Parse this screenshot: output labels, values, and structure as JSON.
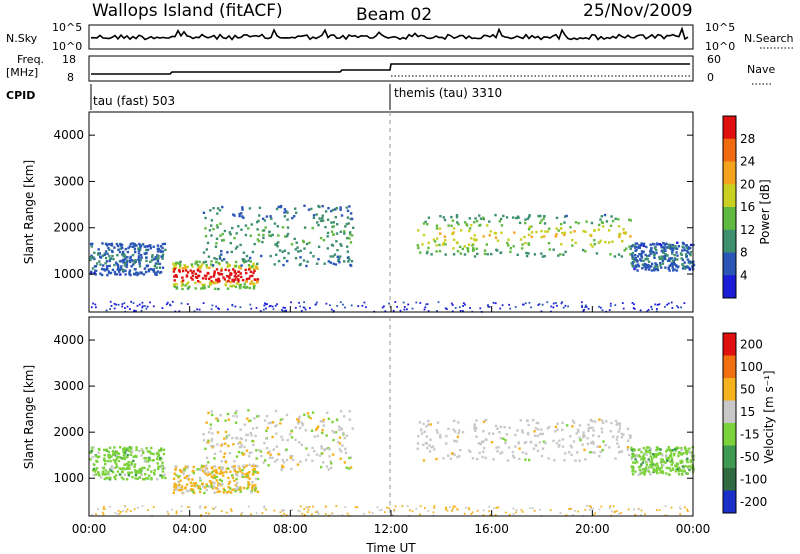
{
  "header": {
    "station": "Wallops Island (fitACF)",
    "beam": "Beam 02",
    "date": "25/Nov/2009"
  },
  "strip": {
    "nsky_label": "N.Sky",
    "nsky_ticks": [
      "10^5",
      "10^0"
    ],
    "nsearch_label": "N.Search",
    "nsearch_ticks": [
      "10^5",
      "10^0"
    ],
    "freq_label": "Freq.",
    "freq_unit": "[MHz]",
    "freq_ticks": [
      "18",
      "8"
    ],
    "nave_label": "Nave",
    "nave_ticks": [
      "60",
      "0"
    ],
    "cpid_label": "CPID",
    "cpid_first": "tau (fast) 503",
    "cpid_second": "themis (tau) 3310"
  },
  "chart_data": [
    {
      "type": "heatmap",
      "name": "power",
      "ylabel": "Slant Range [km]",
      "ylim": [
        180,
        4500
      ],
      "y_ticks": [
        "1000",
        "2000",
        "3000",
        "4000"
      ],
      "x_ticks": [
        "00:00",
        "04:00",
        "08:00",
        "12:00",
        "16:00",
        "20:00",
        "00:00"
      ],
      "xlim_hours": [
        0,
        24
      ],
      "colorbar_label": "Power [dB]",
      "colorbar_ticks": [
        "4",
        "8",
        "12",
        "16",
        "20",
        "24",
        "28"
      ],
      "colorbar_colors": [
        "#1c1cd8",
        "#2a56b5",
        "#3e8f6e",
        "#5fb840",
        "#c9d020",
        "#f5a21c",
        "#f06a10",
        "#e11010"
      ],
      "regions": [
        {
          "t0": 0.0,
          "t1": 3.0,
          "r0": 1000,
          "r1": 1700,
          "level": "low"
        },
        {
          "t0": 3.3,
          "t1": 6.7,
          "r0": 700,
          "r1": 1300,
          "level": "high"
        },
        {
          "t0": 4.5,
          "t1": 10.5,
          "r0": 1200,
          "r1": 2500,
          "level": "mid"
        },
        {
          "t0": 13.0,
          "t1": 21.5,
          "r0": 1400,
          "r1": 2300,
          "level": "mid-high"
        },
        {
          "t0": 21.5,
          "t1": 24.0,
          "r0": 1100,
          "r1": 1700,
          "level": "low"
        }
      ]
    },
    {
      "type": "heatmap",
      "name": "velocity",
      "ylabel": "Slant Range [km]",
      "ylim": [
        180,
        4500
      ],
      "y_ticks": [
        "1000",
        "2000",
        "3000",
        "4000"
      ],
      "x_ticks": [
        "00:00",
        "04:00",
        "08:00",
        "12:00",
        "16:00",
        "20:00",
        "00:00"
      ],
      "xlabel": "Time UT",
      "xlim_hours": [
        0,
        24
      ],
      "colorbar_label": "Velocity [m s⁻¹]",
      "colorbar_ticks": [
        "200",
        "100",
        "50",
        "15",
        "-15",
        "-50",
        "-100",
        "-200"
      ],
      "colorbar_colors": [
        "#1a2fc8",
        "#2f6a40",
        "#3e9a50",
        "#7cd23a",
        "#c8c8c8",
        "#f5b21c",
        "#f07010",
        "#e11010"
      ],
      "regions": [
        {
          "t0": 0.0,
          "t1": 3.0,
          "r0": 1000,
          "r1": 1700,
          "vel": "approaching"
        },
        {
          "t0": 3.3,
          "t1": 6.7,
          "r0": 700,
          "r1": 1300,
          "vel": "receding"
        },
        {
          "t0": 4.5,
          "t1": 10.5,
          "r0": 1200,
          "r1": 2500,
          "vel": "mixed"
        },
        {
          "t0": 13.0,
          "t1": 21.5,
          "r0": 1400,
          "r1": 2300,
          "vel": "near-zero"
        },
        {
          "t0": 21.5,
          "t1": 24.0,
          "r0": 1100,
          "r1": 1700,
          "vel": "approaching"
        }
      ]
    }
  ]
}
